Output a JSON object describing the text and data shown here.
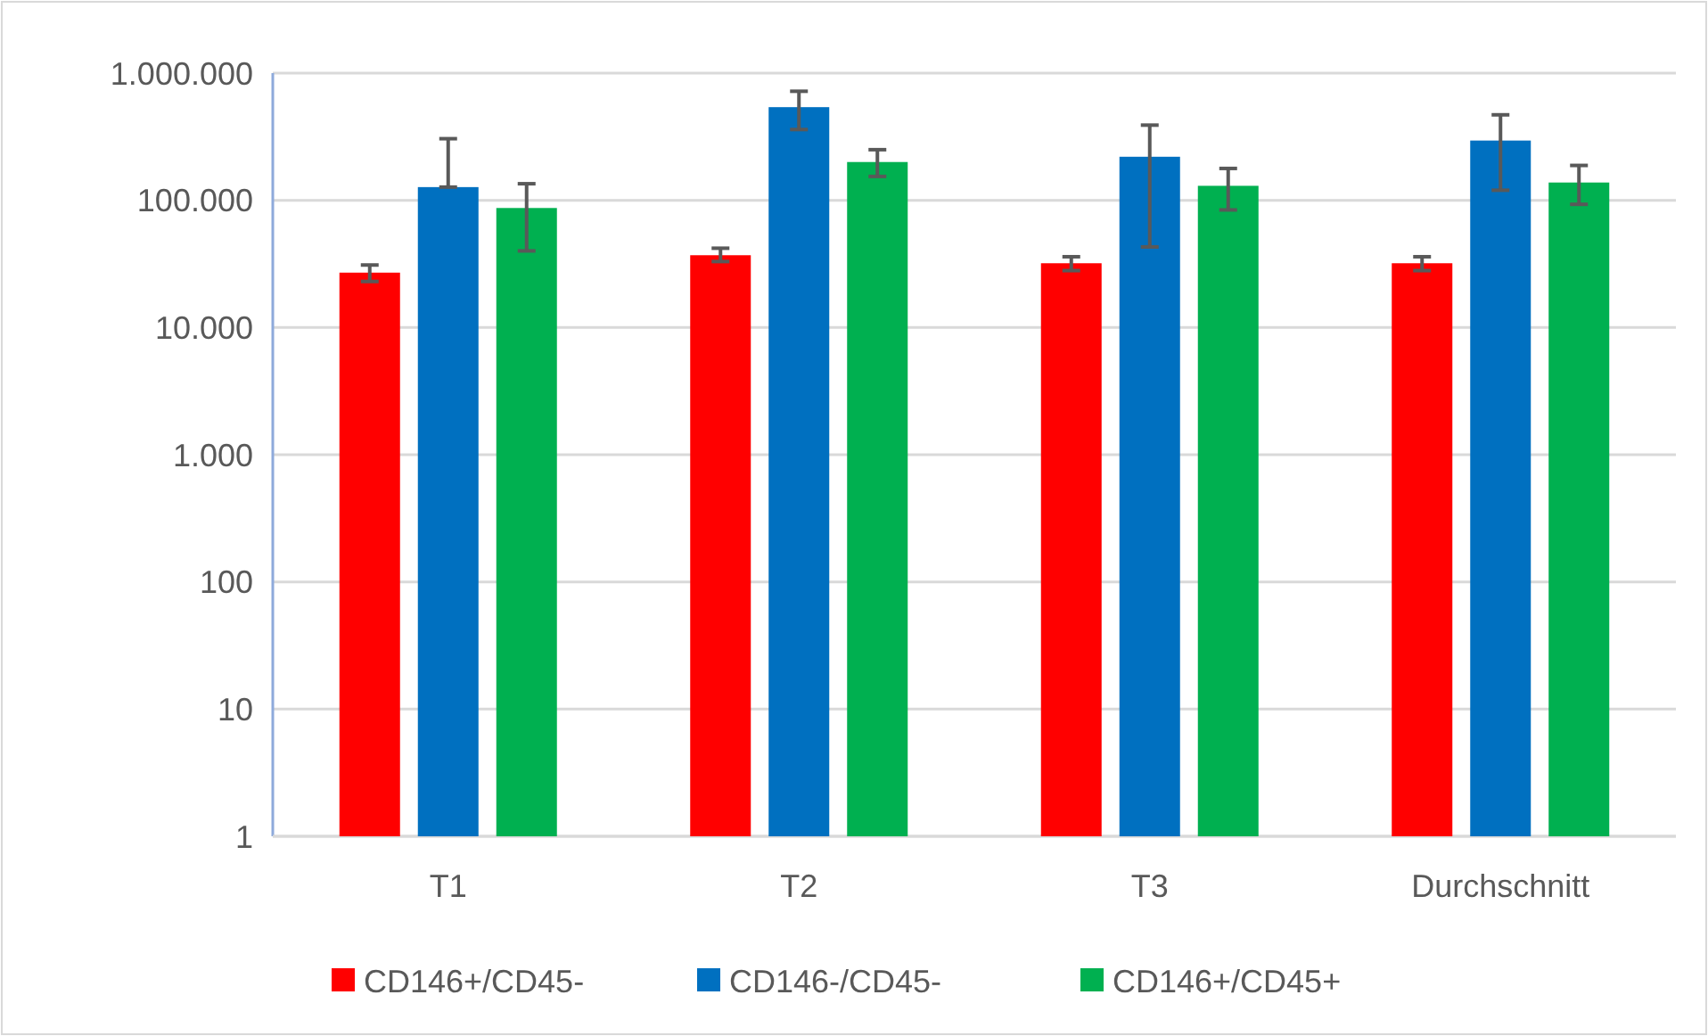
{
  "chart_data": {
    "type": "bar",
    "categories": [
      "T1",
      "T2",
      "T3",
      "Durchschnitt"
    ],
    "log": "y",
    "ylim": [
      1,
      1000000
    ],
    "yticks": [
      1,
      10,
      100,
      {
        "value": 1000,
        "label": "1.000"
      },
      {
        "value": 10000,
        "label": "10.000"
      },
      {
        "value": 100000,
        "label": "100.000"
      },
      {
        "value": 1000000,
        "label": "1.000.000"
      }
    ],
    "grid": "y",
    "legend": "bottom",
    "series": [
      {
        "name": "CD146+/CD45-",
        "color": "#ff0000",
        "values": [
          27000,
          37000,
          32000,
          32000
        ],
        "errors": [
          [
            23000,
            31000
          ],
          [
            33000,
            42000
          ],
          [
            28000,
            36000
          ],
          [
            28000,
            36000
          ]
        ]
      },
      {
        "name": "CD146-/CD45-",
        "color": "#0070c0",
        "values": [
          127000,
          540000,
          220000,
          295000
        ],
        "errors": [
          [
            127000,
            305000
          ],
          [
            360000,
            720000
          ],
          [
            43000,
            390000
          ],
          [
            120000,
            470000
          ]
        ]
      },
      {
        "name": "CD146+/CD45+",
        "color": "#00b050",
        "values": [
          87000,
          200000,
          130000,
          138000
        ],
        "errors": [
          [
            40000,
            135000
          ],
          [
            154000,
            250000
          ],
          [
            84000,
            178000
          ],
          [
            93000,
            188000
          ]
        ]
      }
    ]
  }
}
